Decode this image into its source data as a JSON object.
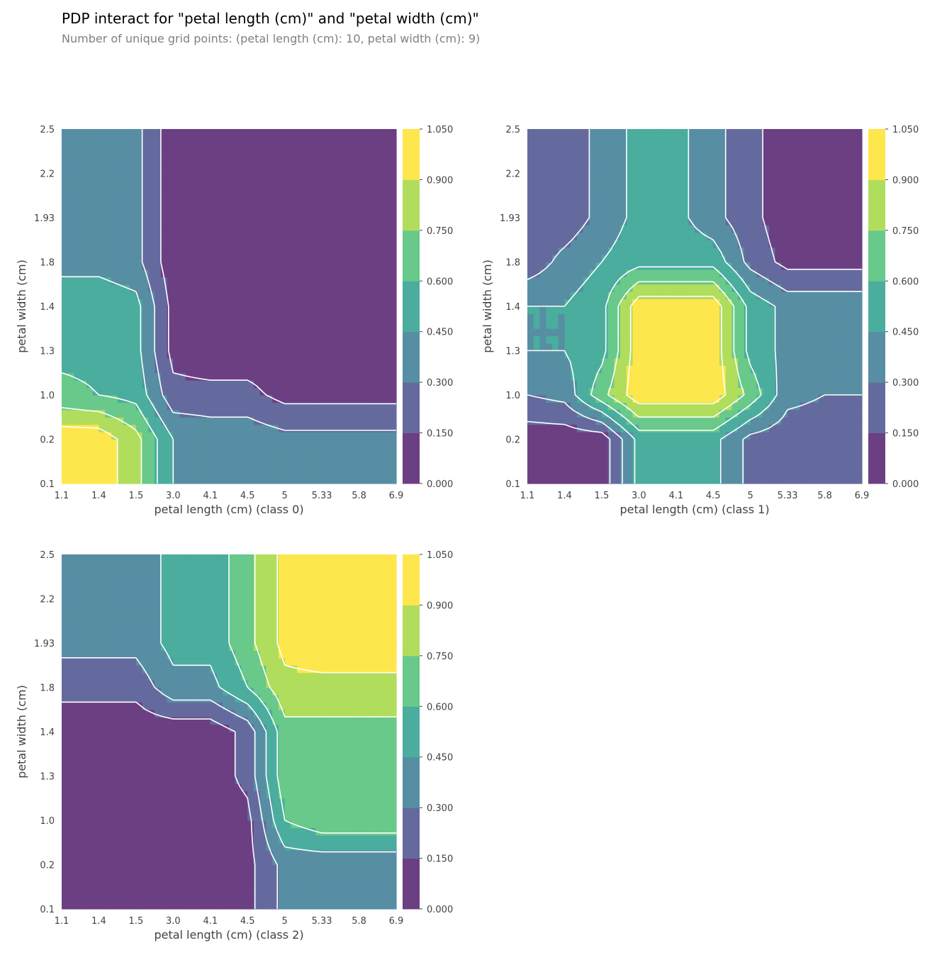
{
  "title": "PDP interact for \"petal length (cm)\" and \"petal width (cm)\"",
  "subtitle": "Number of unique grid points: (petal length (cm): 10, petal width (cm): 9)",
  "chart_data": {
    "type": "contour",
    "feature_x": "petal length (cm)",
    "feature_y": "petal width (cm)",
    "x_ticks": [
      "1.1",
      "1.4",
      "1.5",
      "3.0",
      "4.1",
      "4.5",
      "5",
      "5.33",
      "5.8",
      "6.9"
    ],
    "y_ticks": [
      "0.1",
      "0.2",
      "1.0",
      "1.3",
      "1.4",
      "1.8",
      "1.93",
      "2.2",
      "2.5"
    ],
    "levels": [
      0.0,
      0.15,
      0.3,
      0.45,
      0.6,
      0.75,
      0.9,
      1.05
    ],
    "level_labels": [
      "0.000",
      "0.150",
      "0.300",
      "0.450",
      "0.600",
      "0.750",
      "0.900",
      "1.050"
    ],
    "colors": [
      "#6b3f82",
      "#656a9e",
      "#578ea3",
      "#4aad9e",
      "#68c98a",
      "#b1dd5d",
      "#fde74c"
    ],
    "contour_labels": [
      "0.150",
      "0.300",
      "0.450",
      "0.600",
      "0.750",
      "0.900"
    ],
    "panels": [
      {
        "xlabel": "petal length (cm) (class 0)",
        "ylabel": "petal width (cm)",
        "grid": [
          [
            1.0,
            1.0,
            0.8,
            0.45,
            0.4,
            0.4,
            0.35,
            0.35,
            0.35,
            0.35
          ],
          [
            1.0,
            1.0,
            0.8,
            0.45,
            0.4,
            0.4,
            0.35,
            0.35,
            0.35,
            0.35
          ],
          [
            0.65,
            0.6,
            0.55,
            0.2,
            0.2,
            0.2,
            0.1,
            0.1,
            0.1,
            0.1
          ],
          [
            0.55,
            0.55,
            0.5,
            0.1,
            0.05,
            0.05,
            0.05,
            0.05,
            0.05,
            0.05
          ],
          [
            0.55,
            0.55,
            0.5,
            0.1,
            0.05,
            0.05,
            0.05,
            0.05,
            0.05,
            0.05
          ],
          [
            0.4,
            0.4,
            0.35,
            0.05,
            0.05,
            0.05,
            0.05,
            0.05,
            0.05,
            0.05
          ],
          [
            0.4,
            0.4,
            0.35,
            0.05,
            0.05,
            0.05,
            0.05,
            0.05,
            0.05,
            0.05
          ],
          [
            0.4,
            0.4,
            0.35,
            0.05,
            0.05,
            0.05,
            0.05,
            0.05,
            0.05,
            0.05
          ],
          [
            0.4,
            0.4,
            0.35,
            0.05,
            0.05,
            0.05,
            0.05,
            0.05,
            0.05,
            0.05
          ]
        ]
      },
      {
        "xlabel": "petal length (cm) (class 1)",
        "ylabel": "petal width (cm)",
        "grid": [
          [
            0.05,
            0.05,
            0.05,
            0.5,
            0.5,
            0.5,
            0.25,
            0.2,
            0.2,
            0.2
          ],
          [
            0.05,
            0.05,
            0.05,
            0.5,
            0.5,
            0.5,
            0.25,
            0.2,
            0.2,
            0.2
          ],
          [
            0.3,
            0.35,
            0.7,
            1.0,
            1.0,
            1.0,
            0.7,
            0.35,
            0.3,
            0.3
          ],
          [
            0.45,
            0.45,
            0.55,
            1.0,
            1.0,
            1.0,
            0.55,
            0.4,
            0.4,
            0.4
          ],
          [
            0.45,
            0.45,
            0.55,
            1.0,
            1.0,
            1.0,
            0.55,
            0.4,
            0.4,
            0.4
          ],
          [
            0.2,
            0.35,
            0.45,
            0.55,
            0.55,
            0.55,
            0.25,
            0.1,
            0.1,
            0.1
          ],
          [
            0.2,
            0.2,
            0.35,
            0.5,
            0.5,
            0.35,
            0.2,
            0.05,
            0.05,
            0.05
          ],
          [
            0.2,
            0.2,
            0.35,
            0.5,
            0.5,
            0.35,
            0.2,
            0.05,
            0.05,
            0.05
          ],
          [
            0.2,
            0.2,
            0.35,
            0.5,
            0.5,
            0.35,
            0.2,
            0.05,
            0.05,
            0.05
          ]
        ]
      },
      {
        "xlabel": "petal length (cm) (class 2)",
        "ylabel": "petal width (cm)",
        "grid": [
          [
            0.05,
            0.05,
            0.05,
            0.05,
            0.05,
            0.1,
            0.35,
            0.35,
            0.35,
            0.35
          ],
          [
            0.05,
            0.05,
            0.05,
            0.05,
            0.05,
            0.1,
            0.35,
            0.35,
            0.35,
            0.35
          ],
          [
            0.05,
            0.05,
            0.05,
            0.05,
            0.05,
            0.1,
            0.6,
            0.7,
            0.7,
            0.7
          ],
          [
            0.05,
            0.05,
            0.05,
            0.05,
            0.05,
            0.2,
            0.7,
            0.7,
            0.7,
            0.7
          ],
          [
            0.05,
            0.05,
            0.05,
            0.05,
            0.05,
            0.2,
            0.7,
            0.7,
            0.7,
            0.7
          ],
          [
            0.2,
            0.2,
            0.2,
            0.4,
            0.4,
            0.6,
            0.85,
            0.85,
            0.85,
            0.85
          ],
          [
            0.35,
            0.35,
            0.35,
            0.5,
            0.5,
            0.7,
            0.95,
            1.0,
            1.0,
            1.0
          ],
          [
            0.35,
            0.35,
            0.35,
            0.5,
            0.5,
            0.7,
            0.95,
            1.0,
            1.0,
            1.0
          ],
          [
            0.35,
            0.35,
            0.35,
            0.5,
            0.5,
            0.7,
            0.95,
            1.0,
            1.0,
            1.0
          ]
        ]
      }
    ]
  }
}
